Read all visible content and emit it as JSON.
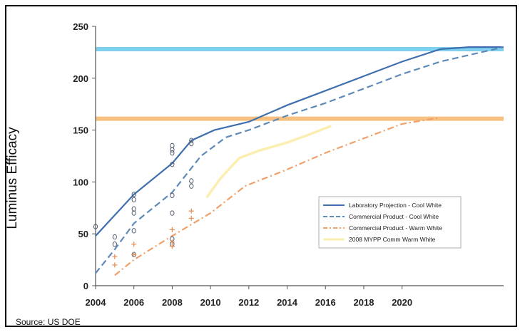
{
  "chart_data": {
    "type": "line",
    "xlabel": "",
    "ylabel": "Luminus Efficacy",
    "source": "Source: US DOE",
    "xlim": [
      2004,
      2025.3
    ],
    "ylim": [
      0,
      250
    ],
    "x_ticks": [
      2004,
      2006,
      2008,
      2010,
      2012,
      2014,
      2016,
      2018,
      2020
    ],
    "y_ticks": [
      0,
      50,
      100,
      150,
      200,
      250
    ],
    "grid": false,
    "legend_position": "bottom-right",
    "reference_lines": [
      {
        "y": 228,
        "color": "#7fd0ef"
      },
      {
        "y": 161,
        "color": "#f7c07e"
      }
    ],
    "series": [
      {
        "name": "Laboratory Projection - Cool White",
        "color": "#3f6fae",
        "style": "solid",
        "points": [
          [
            2004,
            48
          ],
          [
            2006,
            88
          ],
          [
            2008,
            118
          ],
          [
            2009,
            140
          ],
          [
            2010.2,
            150
          ],
          [
            2012,
            158
          ],
          [
            2014,
            174
          ],
          [
            2016,
            188
          ],
          [
            2018,
            202
          ],
          [
            2020,
            216
          ],
          [
            2022,
            228
          ],
          [
            2023.5,
            230
          ],
          [
            2025.3,
            230
          ]
        ]
      },
      {
        "name": "Commercial Product - Cool White",
        "color": "#5e8ab8",
        "style": "dash",
        "points": [
          [
            2004,
            12
          ],
          [
            2005,
            35
          ],
          [
            2006,
            60
          ],
          [
            2008,
            90
          ],
          [
            2009.5,
            125
          ],
          [
            2010.8,
            143
          ],
          [
            2012,
            150
          ],
          [
            2014,
            164
          ],
          [
            2016,
            176
          ],
          [
            2018,
            190
          ],
          [
            2020,
            204
          ],
          [
            2022,
            216
          ],
          [
            2025.3,
            230
          ]
        ]
      },
      {
        "name": "Commercial Product - Warm White",
        "color": "#f0a06a",
        "style": "dashdot",
        "points": [
          [
            2005,
            10
          ],
          [
            2006,
            25
          ],
          [
            2008,
            48
          ],
          [
            2010,
            70
          ],
          [
            2011.8,
            96
          ],
          [
            2014,
            112
          ],
          [
            2016,
            128
          ],
          [
            2018,
            142
          ],
          [
            2020,
            156
          ],
          [
            2022,
            162
          ]
        ]
      },
      {
        "name": "2008 MYPP Comm Warm White",
        "color": "#fbeeb0",
        "style": "solid",
        "points": [
          [
            2009.8,
            85
          ],
          [
            2010.5,
            103
          ],
          [
            2011.5,
            123
          ],
          [
            2012.5,
            130
          ],
          [
            2014,
            138
          ],
          [
            2015.2,
            146
          ],
          [
            2016.3,
            154
          ]
        ]
      }
    ],
    "scatter": [
      {
        "marker": "o",
        "color": "#555e70",
        "points": [
          [
            2004,
            57
          ],
          [
            2005,
            47
          ],
          [
            2005,
            40
          ],
          [
            2006,
            88
          ],
          [
            2006,
            83
          ],
          [
            2006,
            74
          ],
          [
            2006,
            70
          ],
          [
            2006,
            53
          ],
          [
            2006,
            30
          ],
          [
            2008,
            135
          ],
          [
            2008,
            131
          ],
          [
            2008,
            128
          ],
          [
            2008,
            117
          ],
          [
            2008,
            87
          ],
          [
            2008,
            70
          ],
          [
            2008,
            45
          ],
          [
            2008,
            40
          ],
          [
            2009,
            140
          ],
          [
            2009,
            137
          ],
          [
            2009,
            101
          ],
          [
            2009,
            96
          ]
        ]
      },
      {
        "marker": "+",
        "color": "#e8925a",
        "points": [
          [
            2005,
            28
          ],
          [
            2005,
            20
          ],
          [
            2006,
            40
          ],
          [
            2006,
            30
          ],
          [
            2008,
            54
          ],
          [
            2008,
            42
          ],
          [
            2008,
            38
          ],
          [
            2009,
            72
          ],
          [
            2009,
            65
          ]
        ]
      }
    ]
  }
}
